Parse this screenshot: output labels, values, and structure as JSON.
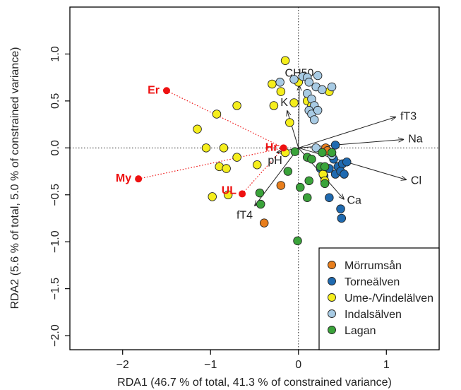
{
  "chart_data": {
    "type": "scatter",
    "xlabel": "RDA1 (46.7 % of total, 41.3 % of constrained variance)",
    "ylabel": "RDA2 (5.6 % of total, 5.0 % of constrained variance)",
    "xlim": [
      -2.6,
      1.6
    ],
    "ylim": [
      -2.15,
      1.5
    ],
    "x_ticks": [
      -2,
      -1,
      0,
      1
    ],
    "y_ticks": [
      -2.0,
      -1.5,
      -1.0,
      -0.5,
      0.0,
      0.5,
      1.0
    ],
    "x_tick_labels": [
      "−2",
      "−1",
      "0",
      "1"
    ],
    "y_tick_labels": [
      "−2.0",
      "−1.5",
      "−1.0",
      "−0.5",
      "0.0",
      "0.5",
      "1.0"
    ],
    "reference_lines": {
      "x": 0,
      "y": 0,
      "style": "dotted"
    },
    "series": [
      {
        "name": "Mörrumsån",
        "color": "#e87e1c",
        "points": [
          [
            -0.2,
            -0.4
          ],
          [
            -0.39,
            -0.8
          ],
          [
            0.31,
            0.0
          ],
          [
            0.33,
            -0.03
          ]
        ]
      },
      {
        "name": "Torneälven",
        "color": "#1f6ab0",
        "points": [
          [
            0.42,
            0.03
          ],
          [
            0.4,
            -0.12
          ],
          [
            0.45,
            -0.2
          ],
          [
            0.35,
            -0.22
          ],
          [
            0.5,
            -0.17
          ],
          [
            0.42,
            -0.28
          ],
          [
            0.48,
            -0.25
          ],
          [
            0.55,
            -0.15
          ],
          [
            0.52,
            -0.28
          ],
          [
            0.35,
            -0.53
          ],
          [
            0.48,
            -0.65
          ],
          [
            0.49,
            -0.75
          ],
          [
            0.29,
            -0.3
          ],
          [
            0.25,
            -0.22
          ]
        ]
      },
      {
        "name": "Ume-/Vindelälven",
        "color": "#f5ee1c",
        "points": [
          [
            -0.15,
            0.93
          ],
          [
            0.0,
            0.7
          ],
          [
            -0.3,
            0.68
          ],
          [
            -0.05,
            0.48
          ],
          [
            -0.28,
            0.45
          ],
          [
            -0.7,
            0.45
          ],
          [
            -0.2,
            0.6
          ],
          [
            0.1,
            0.5
          ],
          [
            0.15,
            0.45
          ],
          [
            0.35,
            0.6
          ],
          [
            -0.93,
            0.36
          ],
          [
            -0.1,
            0.27
          ],
          [
            -1.15,
            0.2
          ],
          [
            -1.05,
            0.0
          ],
          [
            -0.85,
            0.0
          ],
          [
            -0.7,
            -0.1
          ],
          [
            -0.9,
            -0.2
          ],
          [
            -0.82,
            -0.22
          ],
          [
            -0.47,
            -0.18
          ],
          [
            -0.98,
            -0.52
          ],
          [
            -0.8,
            -0.5
          ],
          [
            -0.15,
            -0.05
          ],
          [
            0.28,
            -0.28
          ],
          [
            0.3,
            -0.35
          ]
        ]
      },
      {
        "name": "Indalsälven",
        "color": "#a8cbe4",
        "points": [
          [
            -0.21,
            0.7
          ],
          [
            -0.05,
            0.73
          ],
          [
            0.05,
            0.76
          ],
          [
            0.1,
            0.75
          ],
          [
            0.22,
            0.77
          ],
          [
            0.12,
            0.7
          ],
          [
            0.2,
            0.65
          ],
          [
            0.27,
            0.62
          ],
          [
            0.38,
            0.65
          ],
          [
            0.1,
            0.58
          ],
          [
            0.15,
            0.52
          ],
          [
            0.18,
            0.45
          ],
          [
            0.12,
            0.4
          ],
          [
            0.15,
            0.36
          ],
          [
            0.22,
            0.4
          ],
          [
            0.18,
            0.3
          ],
          [
            0.2,
            0.0
          ],
          [
            0.38,
            -0.08
          ]
        ]
      },
      {
        "name": "Lagan",
        "color": "#3aa33a",
        "points": [
          [
            -0.04,
            -0.04
          ],
          [
            0.1,
            -0.1
          ],
          [
            0.15,
            -0.12
          ],
          [
            0.27,
            -0.05
          ],
          [
            0.38,
            -0.05
          ],
          [
            -0.12,
            -0.25
          ],
          [
            0.25,
            -0.2
          ],
          [
            0.3,
            -0.2
          ],
          [
            0.02,
            -0.42
          ],
          [
            0.12,
            -0.35
          ],
          [
            0.3,
            -0.38
          ],
          [
            0.1,
            -0.53
          ],
          [
            -0.44,
            -0.48
          ],
          [
            -0.43,
            -0.6
          ],
          [
            -0.01,
            -0.99
          ]
        ]
      }
    ],
    "species_scores": [
      {
        "label": "Er",
        "x": -1.5,
        "y": 0.61
      },
      {
        "label": "My",
        "x": -1.82,
        "y": -0.33
      },
      {
        "label": "Hr",
        "x": -0.17,
        "y": 0.0
      },
      {
        "label": "UL",
        "x": -0.64,
        "y": -0.49
      }
    ],
    "species_color": "#ee1111",
    "biplot_arrows": [
      {
        "label": "CH50",
        "x": 0.01,
        "y": 0.67
      },
      {
        "label": "K",
        "x": -0.13,
        "y": 0.4
      },
      {
        "label": "fT3",
        "x": 1.11,
        "y": 0.33
      },
      {
        "label": "Na",
        "x": 1.2,
        "y": 0.09
      },
      {
        "label": "Cl",
        "x": 1.23,
        "y": -0.34
      },
      {
        "label": "Ca",
        "x": 0.52,
        "y": -0.55
      },
      {
        "label": "pH",
        "x": -0.25,
        "y": -0.05
      },
      {
        "label": "fT4",
        "x": -0.5,
        "y": -0.62
      }
    ],
    "legend_position": "bottom-right"
  }
}
